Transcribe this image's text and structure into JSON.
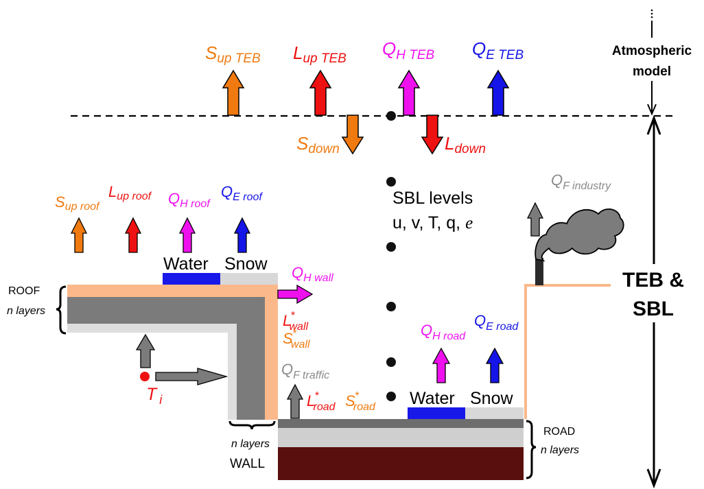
{
  "colors": {
    "orange": "#f07a10",
    "red": "#ee1111",
    "magenta": "#ee11ee",
    "blue": "#1515e8",
    "gray_label": "#8a8a8a",
    "roof_outer": "#fbb88a",
    "layer_dark": "#7b7b7b",
    "layer_light": "#dedede",
    "road_top": "#6d6d6d",
    "road_mid": "#cfcfcf",
    "soil": "#5a0f0f",
    "water": "#1818e8",
    "snow": "#d8d8d8",
    "smoke": "#7c7c7c",
    "dot": "#111111",
    "ti_dot": "#ee1111"
  },
  "teb": {
    "s_up": {
      "main": "S",
      "sub": "up TEB"
    },
    "l_up": {
      "main": "L",
      "sub": "up TEB"
    },
    "qh": {
      "main": "Q",
      "sub": "H TEB"
    },
    "qe": {
      "main": "Q",
      "sub": "E TEB"
    },
    "s_down": {
      "main": "S",
      "sub": "down"
    },
    "l_down": {
      "main": "L",
      "sub": "down"
    }
  },
  "atmos": {
    "line1": "Atmospheric",
    "line2": "model"
  },
  "teb_sbl": {
    "line1": "TEB &",
    "line2": "SBL"
  },
  "sbl": {
    "line1": "SBL levels",
    "line2": "u, v, T, q,",
    "line2_e": "e"
  },
  "roof": {
    "s_up": {
      "main": "S",
      "sub": "up roof"
    },
    "l_up": {
      "main": "L",
      "sub": "up roof"
    },
    "qh": {
      "main": "Q",
      "sub": "H roof"
    },
    "qe": {
      "main": "Q",
      "sub": "E roof"
    },
    "water": "Water",
    "snow": "Snow",
    "label": "ROOF",
    "layers": "n layers"
  },
  "wall": {
    "qh": {
      "main": "Q",
      "sub": "H wall"
    },
    "l": {
      "main": "L",
      "sup": "*",
      "sub": "wall"
    },
    "s": {
      "main": "S",
      "sup": "*",
      "sub": "wall"
    },
    "layers": "n layers",
    "label": "WALL"
  },
  "interior": {
    "main": "T",
    "sub": "i"
  },
  "traffic": {
    "main": "Q",
    "sub": "F traffic"
  },
  "road": {
    "l": {
      "main": "L",
      "sup": "*",
      "sub": "road"
    },
    "s": {
      "main": "S",
      "sup": "*",
      "sub": "road"
    },
    "qh": {
      "main": "Q",
      "sub": "H road"
    },
    "qe": {
      "main": "Q",
      "sub": "E road"
    },
    "water": "Water",
    "snow": "Snow",
    "label": "ROAD",
    "layers": "n layers"
  },
  "industry": {
    "main": "Q",
    "sub": "F industry"
  }
}
